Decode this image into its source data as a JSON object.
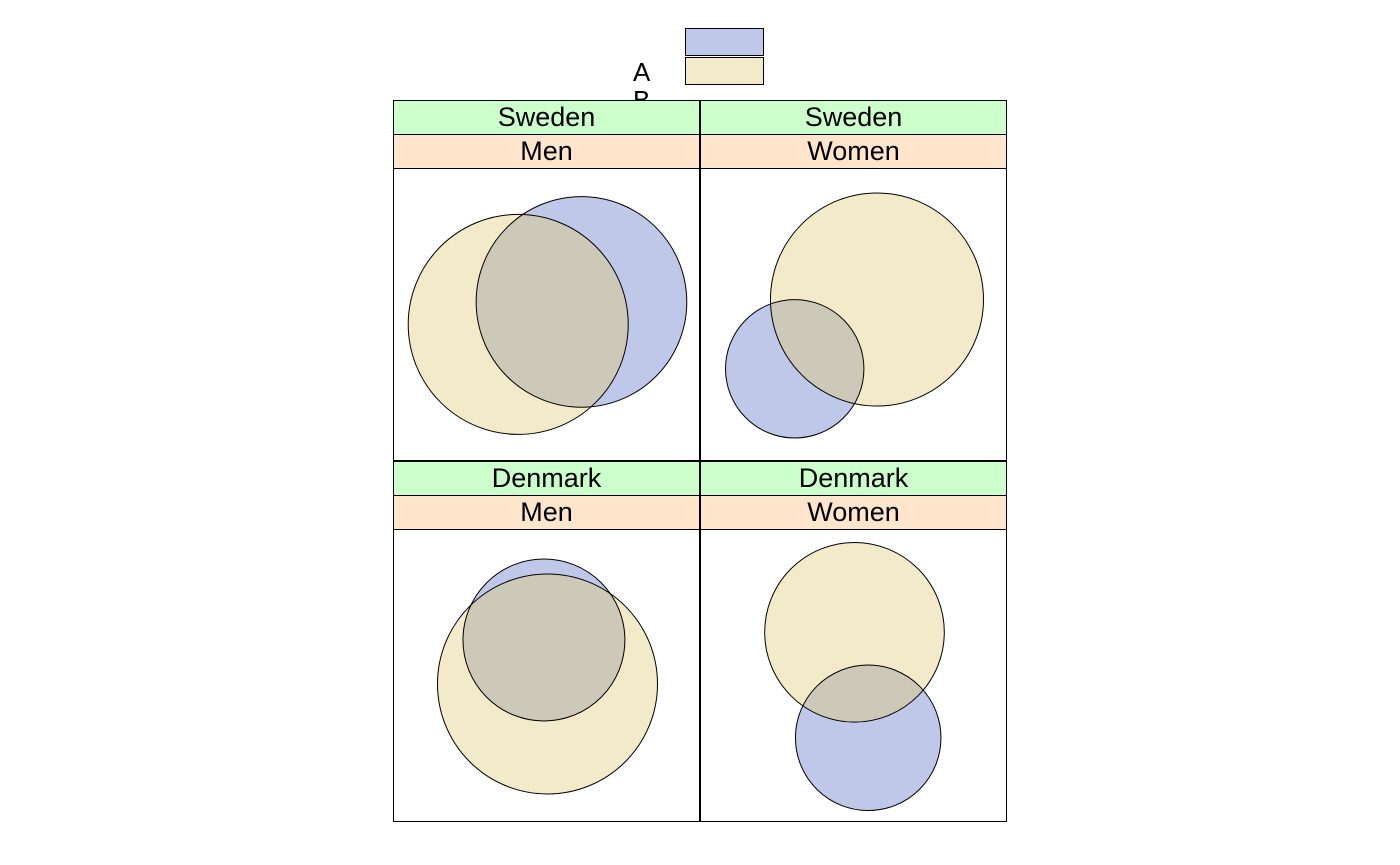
{
  "legend": {
    "items": [
      {
        "label": "A",
        "color": "#c0c8ea"
      },
      {
        "label": "B",
        "color": "#f2eac9"
      }
    ]
  },
  "colors": {
    "strip_outer": "#ccffcc",
    "strip_inner": "#ffe5cc",
    "overlap": "#ccc9b8",
    "outline": "#000000"
  },
  "chart_data": {
    "type": "euler",
    "sets": [
      "A",
      "B"
    ],
    "facets": [
      {
        "outer": "Sweden",
        "inner": "Men",
        "A": 0.44,
        "B": 0.48,
        "A&B": 0.28
      },
      {
        "outer": "Sweden",
        "inner": "Women",
        "A": 0.19,
        "B": 0.45,
        "A&B": 0.08
      },
      {
        "outer": "Denmark",
        "inner": "Men",
        "A": 0.26,
        "B": 0.48,
        "A&B": 0.24
      },
      {
        "outer": "Denmark",
        "inner": "Women",
        "A": 0.21,
        "B": 0.32,
        "A&B": 0.06
      }
    ]
  }
}
